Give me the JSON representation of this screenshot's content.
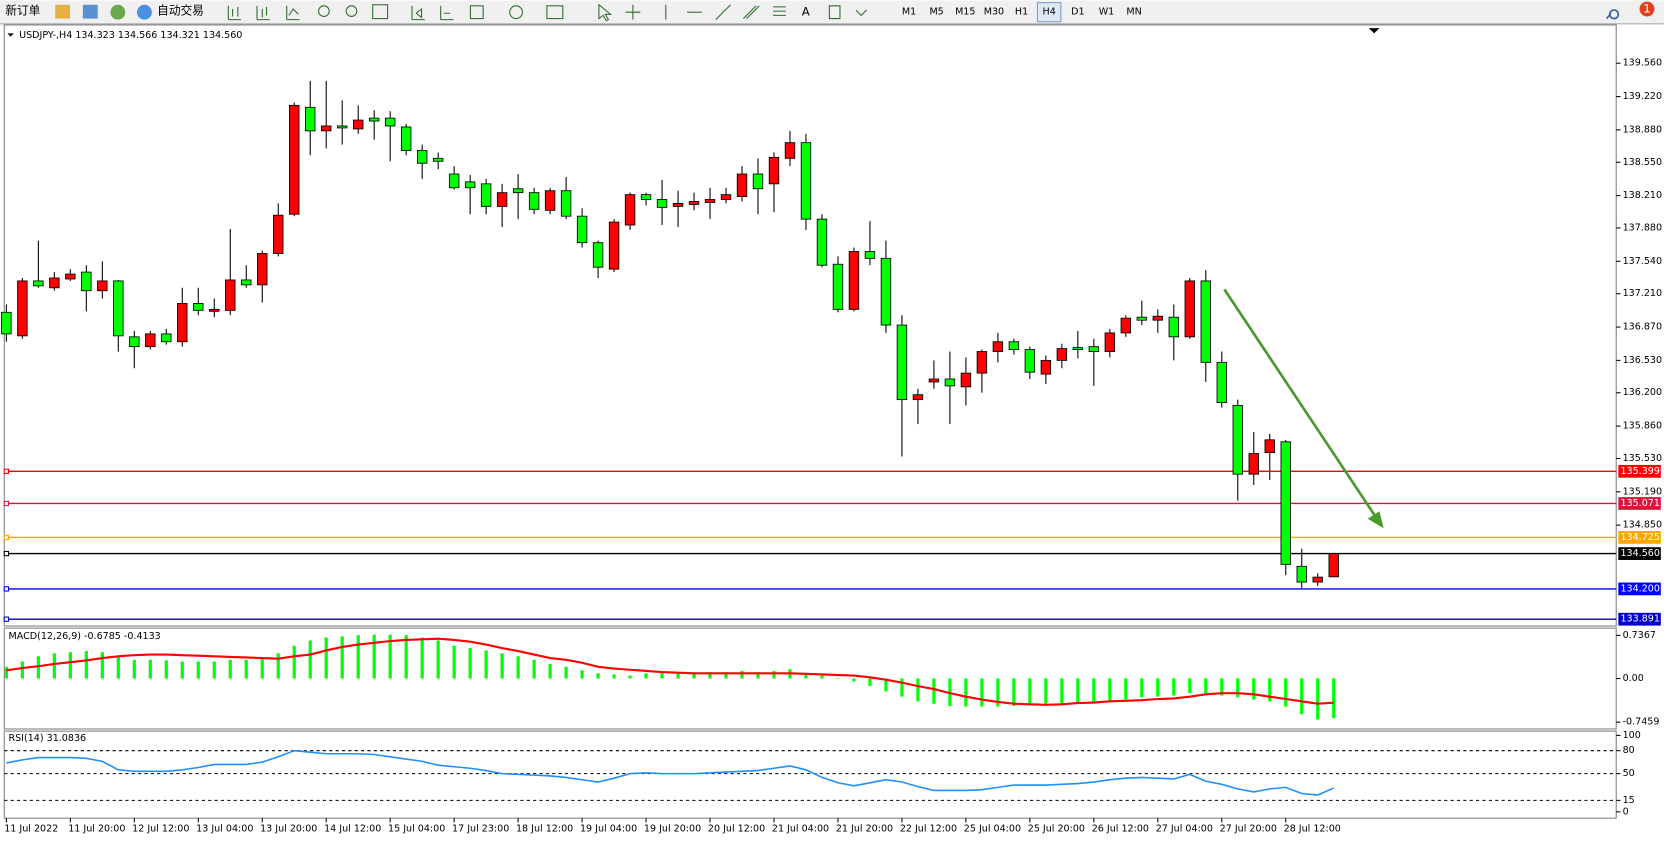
{
  "toolbar": {
    "new_order": "新订单",
    "auto_trade": "自动交易",
    "timeframes": [
      "M1",
      "M5",
      "M15",
      "M30",
      "H1",
      "H4",
      "D1",
      "W1",
      "MN"
    ],
    "active_timeframe": "H4",
    "badge": "1"
  },
  "chart_data": [
    {
      "type": "candlestick",
      "header": "USDJPY-,H4  134.323 134.566 134.321 134.560",
      "up_color": "#ff0000",
      "down_color": "#00ff00",
      "ylim": [
        133.822,
        139.95
      ],
      "yticks": [
        {
          "value": 139.56,
          "label": "139.560"
        },
        {
          "value": 139.22,
          "label": "139.220"
        },
        {
          "value": 138.88,
          "label": "138.880"
        },
        {
          "value": 138.55,
          "label": "138.550"
        },
        {
          "value": 138.21,
          "label": "138.210"
        },
        {
          "value": 137.88,
          "label": "137.880"
        },
        {
          "value": 137.54,
          "label": "137.540"
        },
        {
          "value": 137.21,
          "label": "137.210"
        },
        {
          "value": 136.87,
          "label": "136.870"
        },
        {
          "value": 136.53,
          "label": "136.530"
        },
        {
          "value": 136.2,
          "label": "136.200"
        },
        {
          "value": 135.86,
          "label": "135.860"
        },
        {
          "value": 135.53,
          "label": "135.530"
        },
        {
          "value": 135.19,
          "label": "135.190"
        },
        {
          "value": 134.85,
          "label": "134.850"
        }
      ],
      "levels": [
        {
          "value": 135.399,
          "label": "135.399",
          "color": "#ff0000"
        },
        {
          "value": 135.071,
          "label": "135.071",
          "color": "#dc143c"
        },
        {
          "value": 134.725,
          "label": "134.725",
          "color": "#ffa500"
        },
        {
          "value": 134.56,
          "label": "134.560",
          "color": "#000000"
        },
        {
          "value": 134.2,
          "label": "134.200",
          "color": "#0000ff"
        },
        {
          "value": 133.891,
          "label": "133.891",
          "color": "#0000cd"
        }
      ],
      "time_labels": [
        "11 Jul 2022",
        "11 Jul 20:00",
        "12 Jul 12:00",
        "13 Jul 04:00",
        "13 Jul 20:00",
        "14 Jul 12:00",
        "15 Jul 04:00",
        "17 Jul 23:00",
        "18 Jul 12:00",
        "19 Jul 04:00",
        "19 Jul 20:00",
        "20 Jul 12:00",
        "21 Jul 04:00",
        "21 Jul 20:00",
        "22 Jul 12:00",
        "25 Jul 04:00",
        "25 Jul 20:00",
        "26 Jul 12:00",
        "27 Jul 04:00",
        "27 Jul 20:00",
        "28 Jul 12:00"
      ],
      "ohlc": [
        [
          137.02,
          137.1,
          136.72,
          136.8
        ],
        [
          136.78,
          137.37,
          136.75,
          137.34
        ],
        [
          137.34,
          137.75,
          137.27,
          137.29
        ],
        [
          137.27,
          137.43,
          137.24,
          137.37
        ],
        [
          137.36,
          137.46,
          137.34,
          137.41
        ],
        [
          137.43,
          137.5,
          137.03,
          137.24
        ],
        [
          137.24,
          137.54,
          137.16,
          137.34
        ],
        [
          137.34,
          137.35,
          136.62,
          136.78
        ],
        [
          136.77,
          136.83,
          136.45,
          136.67
        ],
        [
          136.67,
          136.83,
          136.64,
          136.8
        ],
        [
          136.8,
          136.85,
          136.69,
          136.72
        ],
        [
          136.72,
          137.27,
          136.67,
          137.11
        ],
        [
          137.11,
          137.27,
          136.99,
          137.04
        ],
        [
          137.03,
          137.16,
          136.97,
          137.05
        ],
        [
          137.04,
          137.87,
          136.99,
          137.35
        ],
        [
          137.35,
          137.5,
          137.27,
          137.3
        ],
        [
          137.3,
          137.65,
          137.12,
          137.62
        ],
        [
          137.62,
          138.13,
          137.59,
          138.01
        ],
        [
          138.02,
          139.16,
          138.0,
          139.13
        ],
        [
          139.11,
          139.38,
          138.62,
          138.87
        ],
        [
          138.87,
          139.38,
          138.69,
          138.92
        ],
        [
          138.92,
          139.18,
          138.73,
          138.9
        ],
        [
          138.89,
          139.13,
          138.84,
          138.98
        ],
        [
          139.0,
          139.08,
          138.78,
          138.97
        ],
        [
          139.0,
          139.07,
          138.56,
          138.92
        ],
        [
          138.91,
          138.94,
          138.62,
          138.67
        ],
        [
          138.67,
          138.73,
          138.38,
          138.54
        ],
        [
          138.59,
          138.65,
          138.48,
          138.56
        ],
        [
          138.43,
          138.51,
          138.27,
          138.29
        ],
        [
          138.35,
          138.42,
          138.02,
          138.29
        ],
        [
          138.33,
          138.38,
          138.02,
          138.1
        ],
        [
          138.1,
          138.33,
          137.89,
          138.24
        ],
        [
          138.28,
          138.43,
          137.97,
          138.24
        ],
        [
          138.24,
          138.29,
          138.02,
          138.07
        ],
        [
          138.06,
          138.29,
          138.02,
          138.26
        ],
        [
          138.26,
          138.4,
          137.97,
          138.0
        ],
        [
          138.0,
          138.08,
          137.68,
          137.73
        ],
        [
          137.73,
          137.75,
          137.37,
          137.48
        ],
        [
          137.46,
          137.97,
          137.43,
          137.94
        ],
        [
          137.91,
          138.24,
          137.86,
          138.22
        ],
        [
          138.22,
          138.24,
          138.11,
          138.17
        ],
        [
          138.17,
          138.37,
          137.91,
          138.09
        ],
        [
          138.1,
          138.26,
          137.89,
          138.13
        ],
        [
          138.12,
          138.24,
          138.06,
          138.15
        ],
        [
          138.14,
          138.29,
          137.97,
          138.17
        ],
        [
          138.17,
          138.29,
          138.13,
          138.22
        ],
        [
          138.2,
          138.51,
          138.15,
          138.43
        ],
        [
          138.43,
          138.59,
          138.02,
          138.28
        ],
        [
          138.33,
          138.65,
          138.04,
          138.6
        ],
        [
          138.59,
          138.87,
          138.51,
          138.75
        ],
        [
          138.75,
          138.84,
          137.86,
          137.97
        ],
        [
          137.97,
          138.02,
          137.48,
          137.5
        ],
        [
          137.51,
          137.59,
          137.02,
          137.05
        ],
        [
          137.05,
          137.68,
          137.03,
          137.64
        ],
        [
          137.64,
          137.95,
          137.5,
          137.57
        ],
        [
          137.57,
          137.75,
          136.81,
          136.89
        ],
        [
          136.89,
          136.99,
          135.55,
          136.13
        ],
        [
          136.13,
          136.24,
          135.88,
          136.18
        ],
        [
          136.31,
          136.53,
          136.24,
          136.34
        ],
        [
          136.34,
          136.62,
          135.88,
          136.27
        ],
        [
          136.26,
          136.56,
          136.07,
          136.4
        ],
        [
          136.4,
          136.64,
          136.2,
          136.62
        ],
        [
          136.62,
          136.81,
          136.51,
          136.72
        ],
        [
          136.72,
          136.75,
          136.59,
          136.64
        ],
        [
          136.64,
          136.67,
          136.34,
          136.41
        ],
        [
          136.39,
          136.58,
          136.29,
          136.53
        ],
        [
          136.53,
          136.7,
          136.45,
          136.65
        ],
        [
          136.66,
          136.83,
          136.55,
          136.64
        ],
        [
          136.67,
          136.75,
          136.27,
          136.62
        ],
        [
          136.62,
          136.85,
          136.56,
          136.81
        ],
        [
          136.81,
          136.99,
          136.77,
          136.96
        ],
        [
          136.97,
          137.14,
          136.89,
          136.94
        ],
        [
          136.94,
          137.05,
          136.81,
          136.98
        ],
        [
          136.97,
          137.1,
          136.53,
          136.77
        ],
        [
          136.77,
          137.37,
          136.75,
          137.34
        ],
        [
          137.34,
          137.45,
          136.31,
          136.51
        ],
        [
          136.51,
          136.62,
          136.05,
          136.1
        ],
        [
          136.07,
          136.13,
          135.1,
          135.37
        ],
        [
          135.37,
          135.8,
          135.26,
          135.58
        ],
        [
          135.59,
          135.78,
          135.31,
          135.72
        ],
        [
          135.7,
          135.72,
          134.34,
          134.45
        ],
        [
          134.43,
          134.61,
          134.21,
          134.27
        ],
        [
          134.27,
          134.36,
          134.23,
          134.32
        ],
        [
          134.323,
          134.566,
          134.321,
          134.56
        ]
      ]
    },
    {
      "type": "macd",
      "header": "MACD(12,26,9) -0.6785 -0.4133",
      "hist_color": "#00ff00",
      "signal_color": "#ff0000",
      "ylim": [
        -0.8625,
        0.862
      ],
      "yticks": [
        {
          "value": 0.7367,
          "label": "0.7367"
        },
        {
          "value": 0,
          "label": "0.00"
        },
        {
          "value": -0.7459,
          "label": "-0.7459"
        }
      ],
      "histogram": [
        0.2,
        0.29,
        0.38,
        0.43,
        0.45,
        0.47,
        0.45,
        0.39,
        0.32,
        0.32,
        0.31,
        0.29,
        0.29,
        0.29,
        0.32,
        0.32,
        0.36,
        0.43,
        0.56,
        0.65,
        0.7,
        0.72,
        0.74,
        0.75,
        0.75,
        0.74,
        0.7,
        0.65,
        0.56,
        0.52,
        0.48,
        0.43,
        0.38,
        0.32,
        0.25,
        0.2,
        0.14,
        0.09,
        0.07,
        0.05,
        0.09,
        0.11,
        0.09,
        0.09,
        0.11,
        0.11,
        0.13,
        0.11,
        0.13,
        0.16,
        0.09,
        0.05,
        0.0,
        -0.05,
        -0.13,
        -0.22,
        -0.31,
        -0.39,
        -0.43,
        -0.47,
        -0.48,
        -0.48,
        -0.48,
        -0.47,
        -0.45,
        -0.43,
        -0.43,
        -0.43,
        -0.43,
        -0.39,
        -0.36,
        -0.32,
        -0.31,
        -0.29,
        -0.25,
        -0.25,
        -0.29,
        -0.32,
        -0.36,
        -0.39,
        -0.48,
        -0.61,
        -0.7,
        -0.6785
      ],
      "signal": [
        0.14,
        0.18,
        0.21,
        0.25,
        0.28,
        0.31,
        0.35,
        0.38,
        0.4,
        0.41,
        0.41,
        0.4,
        0.39,
        0.38,
        0.37,
        0.36,
        0.35,
        0.34,
        0.38,
        0.41,
        0.48,
        0.54,
        0.58,
        0.61,
        0.64,
        0.66,
        0.67,
        0.68,
        0.66,
        0.63,
        0.58,
        0.52,
        0.47,
        0.41,
        0.35,
        0.32,
        0.27,
        0.2,
        0.17,
        0.15,
        0.13,
        0.11,
        0.1,
        0.09,
        0.09,
        0.09,
        0.09,
        0.09,
        0.09,
        0.09,
        0.08,
        0.07,
        0.06,
        0.05,
        0.02,
        -0.02,
        -0.07,
        -0.13,
        -0.18,
        -0.25,
        -0.31,
        -0.36,
        -0.4,
        -0.43,
        -0.44,
        -0.45,
        -0.44,
        -0.42,
        -0.41,
        -0.39,
        -0.38,
        -0.37,
        -0.35,
        -0.34,
        -0.31,
        -0.27,
        -0.25,
        -0.25,
        -0.27,
        -0.31,
        -0.35,
        -0.39,
        -0.43,
        -0.4133
      ]
    },
    {
      "type": "rsi",
      "header": "RSI(14) 31.0836",
      "color": "#1e90ff",
      "ylim": [
        -8.3,
        105.6
      ],
      "yticks": [
        100,
        80,
        50,
        15,
        0
      ],
      "levels": [
        80,
        50,
        15
      ],
      "values": [
        64,
        68,
        71,
        71,
        71,
        70,
        66,
        55,
        53,
        53,
        53,
        55,
        58,
        62,
        62,
        62,
        65,
        72,
        80,
        78,
        76,
        76,
        76,
        75,
        72,
        69,
        66,
        61,
        59,
        57,
        54,
        50,
        49,
        48,
        47,
        45,
        42,
        39,
        44,
        50,
        51,
        50,
        50,
        50,
        51,
        52,
        53,
        54,
        57,
        60,
        55,
        45,
        38,
        34,
        38,
        42,
        39,
        33,
        28,
        28,
        28,
        29,
        32,
        35,
        35,
        35,
        36,
        37,
        39,
        42,
        44,
        45,
        44,
        43,
        49,
        40,
        36,
        30,
        26,
        30,
        32,
        24,
        22,
        31.0836
      ]
    }
  ]
}
